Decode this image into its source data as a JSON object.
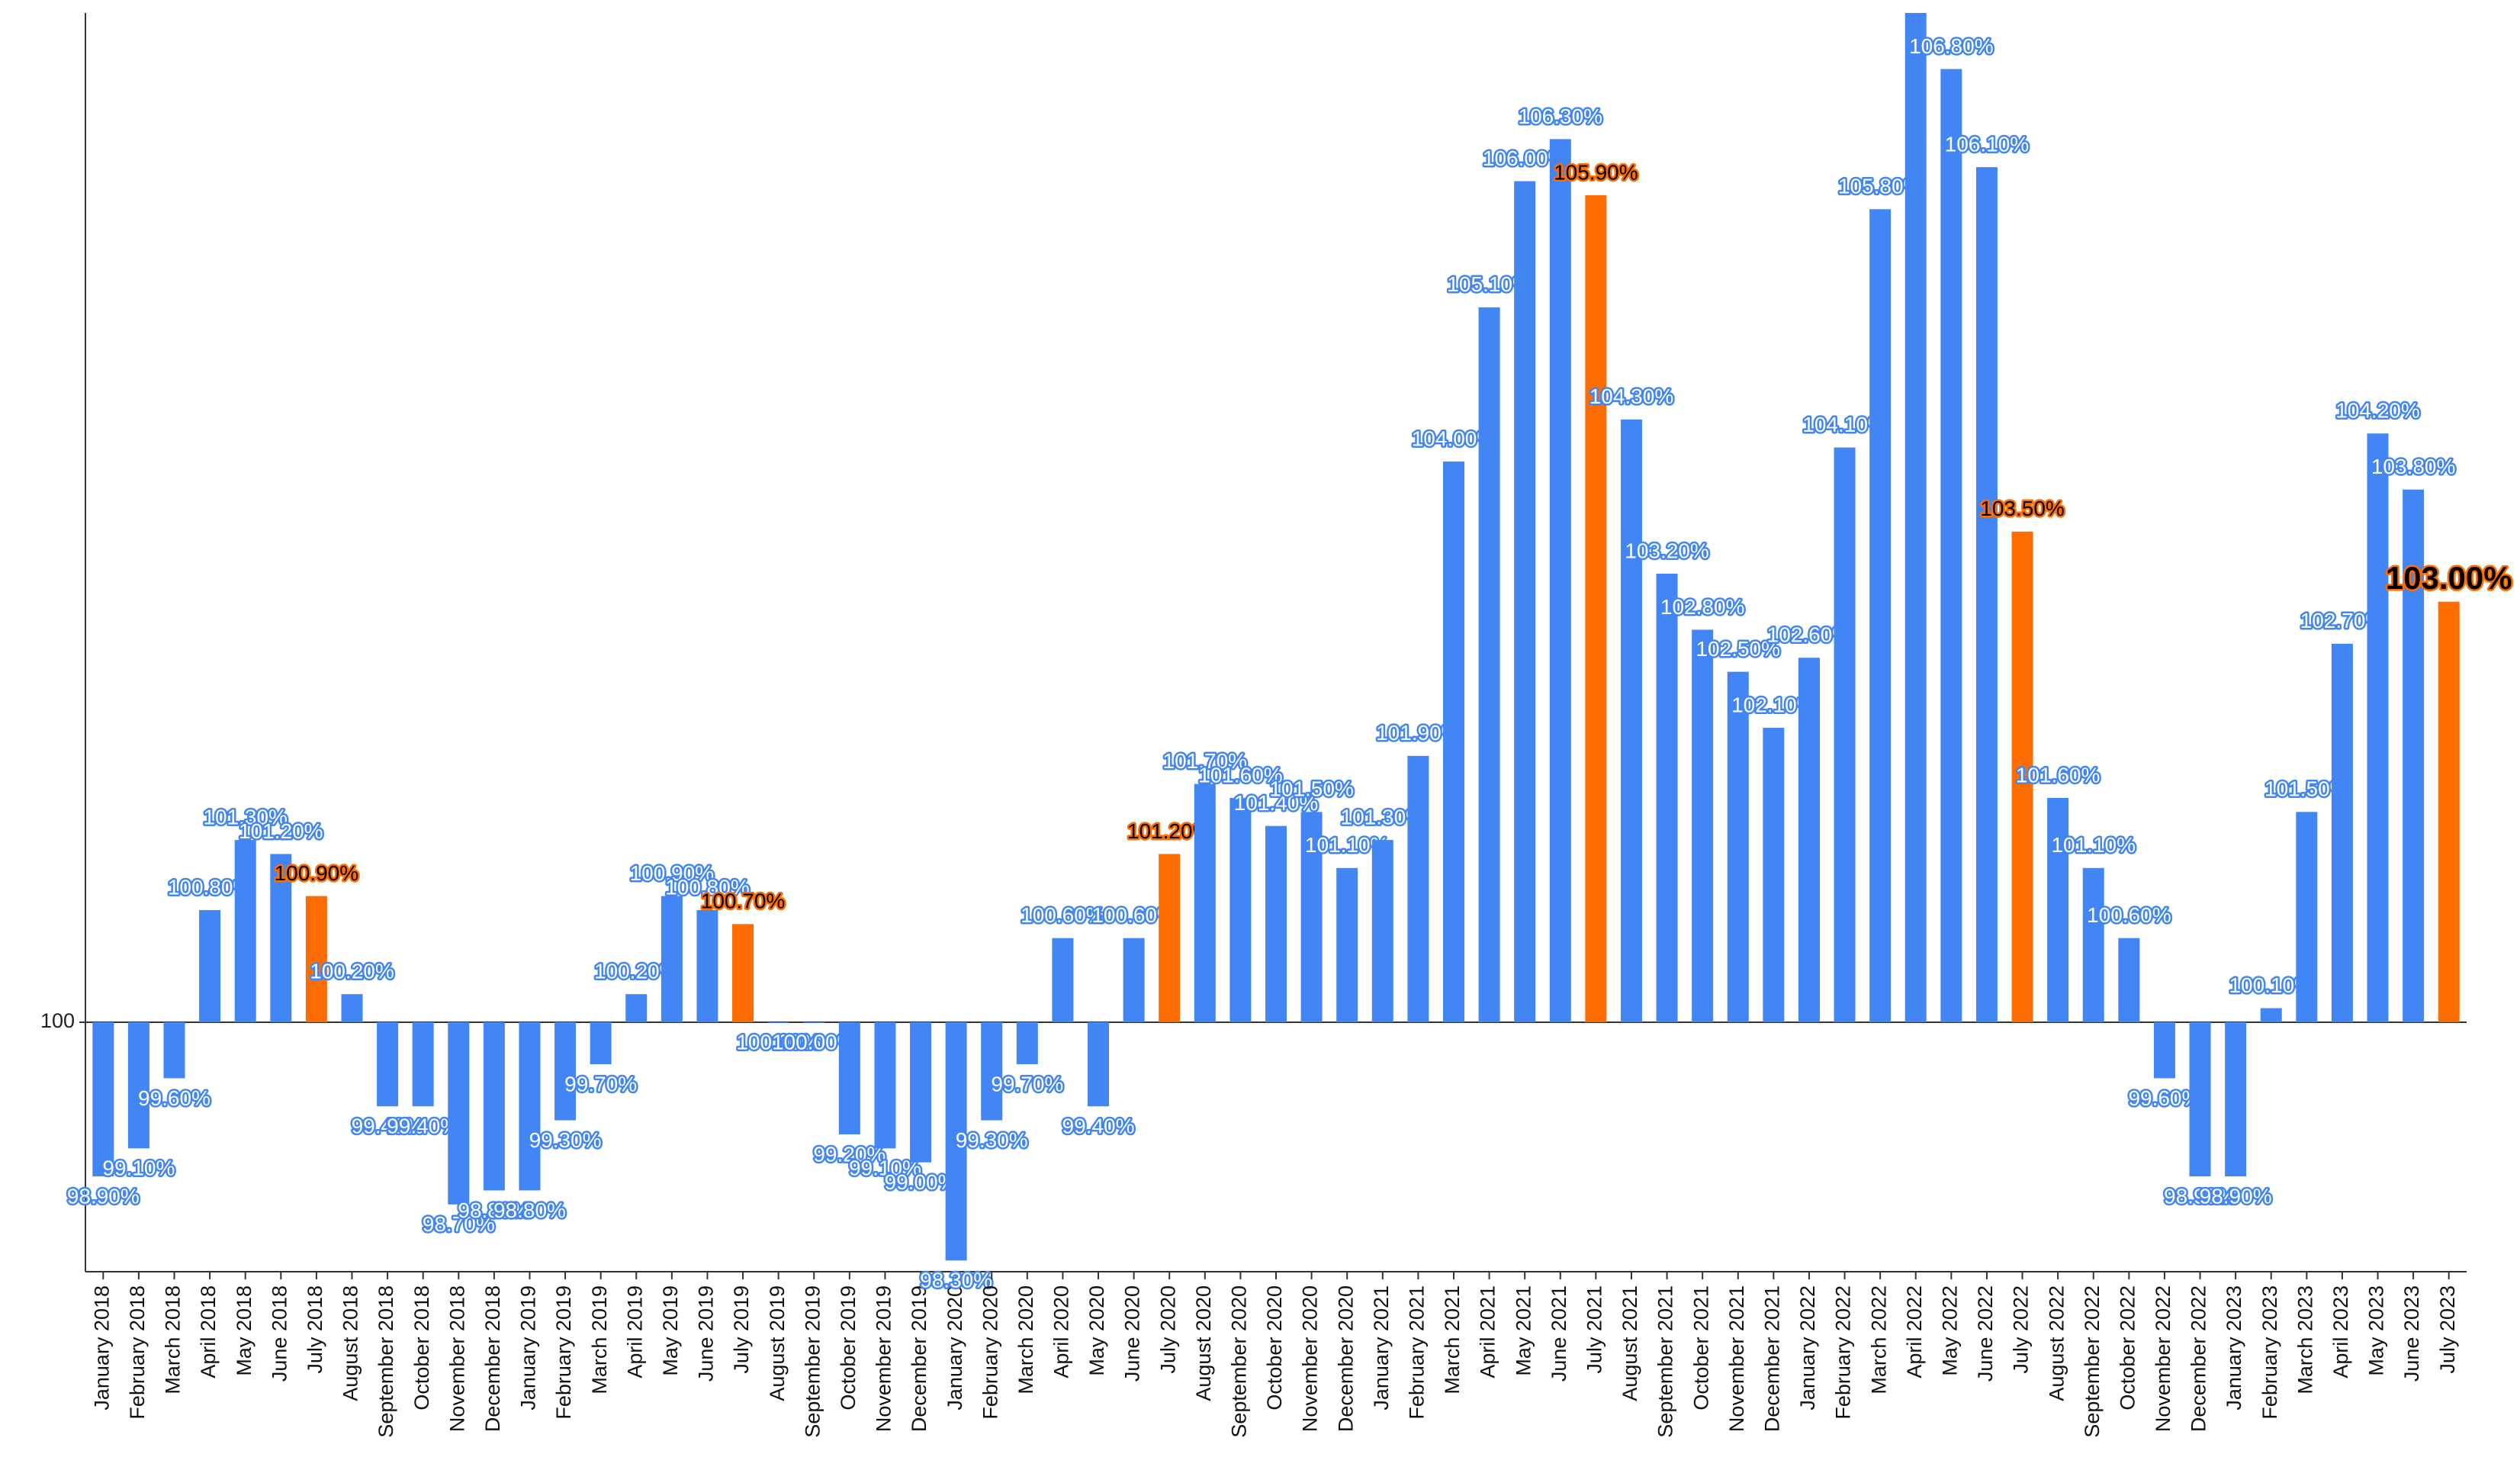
{
  "chart_data": {
    "type": "bar",
    "categories": [
      "January 2018",
      "February 2018",
      "March 2018",
      "April 2018",
      "May 2018",
      "June 2018",
      "July 2018",
      "August 2018",
      "September 2018",
      "October 2018",
      "November 2018",
      "December 2018",
      "January 2019",
      "February 2019",
      "March 2019",
      "April 2019",
      "May 2019",
      "June 2019",
      "July 2019",
      "August 2019",
      "September 2019",
      "October 2019",
      "November 2019",
      "December 2019",
      "January 2020",
      "February 2020",
      "March 2020",
      "April 2020",
      "May 2020",
      "June 2020",
      "July 2020",
      "August 2020",
      "September 2020",
      "October 2020",
      "November 2020",
      "December 2020",
      "January 2021",
      "February 2021",
      "March 2021",
      "April 2021",
      "May 2021",
      "June 2021",
      "July 2021",
      "August 2021",
      "September 2021",
      "October 2021",
      "November 2021",
      "December 2021",
      "January 2022",
      "February 2022",
      "March 2022",
      "April 2022",
      "May 2022",
      "June 2022",
      "July 2022",
      "August 2022",
      "September 2022",
      "October 2022",
      "November 2022",
      "December 2022",
      "January 2023",
      "February 2023",
      "March 2023",
      "April 2023",
      "May 2023",
      "June 2023",
      "July 2023"
    ],
    "values": [
      98.9,
      99.1,
      99.6,
      100.8,
      101.3,
      101.2,
      100.9,
      100.2,
      99.4,
      99.4,
      98.7,
      98.8,
      98.8,
      99.3,
      99.7,
      100.2,
      100.9,
      100.8,
      100.7,
      100.0,
      100.0,
      99.2,
      99.1,
      99.0,
      98.3,
      99.3,
      99.7,
      100.6,
      99.4,
      100.6,
      101.2,
      101.7,
      101.6,
      101.4,
      101.5,
      101.1,
      101.3,
      101.9,
      104.0,
      105.1,
      106.0,
      106.3,
      105.9,
      104.3,
      103.2,
      102.8,
      102.5,
      102.1,
      102.6,
      104.1,
      105.8,
      107.2,
      106.8,
      106.1,
      103.5,
      101.6,
      101.1,
      100.6,
      99.6,
      98.9,
      98.9,
      100.1,
      101.5,
      102.7,
      104.2,
      103.8,
      103.0
    ],
    "value_labels": [
      "98.90%",
      "99.10%",
      "99.60%",
      "100.80%",
      "101.30%",
      "101.20%",
      "100.90%",
      "100.20%",
      "99.40%",
      "99.40%",
      "98.70%",
      "98.80%",
      "98.80%",
      "99.30%",
      "99.70%",
      "100.20%",
      "100.90%",
      "100.80%",
      "100.70%",
      "100.00%",
      "100.00%",
      "99.20%",
      "99.10%",
      "99.00%",
      "98.30%",
      "99.30%",
      "99.70%",
      "100.60%",
      "99.40%",
      "100.60%",
      "101.20%",
      "101.70%",
      "101.60%",
      "101.40%",
      "101.50%",
      "101.10%",
      "101.30%",
      "101.90%",
      "104.00%",
      "105.10%",
      "106.00%",
      "106.30%",
      "105.90%",
      "104.30%",
      "103.20%",
      "102.80%",
      "102.50%",
      "102.10%",
      "102.60%",
      "104.10%",
      "105.80%",
      "107.20%",
      "106.80%",
      "106.10%",
      "103.50%",
      "101.60%",
      "101.10%",
      "100.60%",
      "99.60%",
      "98.90%",
      "98.90%",
      "100.10%",
      "101.50%",
      "102.70%",
      "104.20%",
      "103.80%",
      "103.00%"
    ],
    "colors": [
      "#4285f4",
      "#4285f4",
      "#4285f4",
      "#4285f4",
      "#4285f4",
      "#4285f4",
      "#ff6d01",
      "#4285f4",
      "#4285f4",
      "#4285f4",
      "#4285f4",
      "#4285f4",
      "#4285f4",
      "#4285f4",
      "#4285f4",
      "#4285f4",
      "#4285f4",
      "#4285f4",
      "#ff6d01",
      "#4285f4",
      "#4285f4",
      "#4285f4",
      "#4285f4",
      "#4285f4",
      "#4285f4",
      "#4285f4",
      "#4285f4",
      "#4285f4",
      "#4285f4",
      "#4285f4",
      "#ff6d01",
      "#4285f4",
      "#4285f4",
      "#4285f4",
      "#4285f4",
      "#4285f4",
      "#4285f4",
      "#4285f4",
      "#4285f4",
      "#4285f4",
      "#4285f4",
      "#4285f4",
      "#ff6d01",
      "#4285f4",
      "#4285f4",
      "#4285f4",
      "#4285f4",
      "#4285f4",
      "#4285f4",
      "#4285f4",
      "#4285f4",
      "#4285f4",
      "#4285f4",
      "#4285f4",
      "#ff6d01",
      "#4285f4",
      "#4285f4",
      "#4285f4",
      "#4285f4",
      "#4285f4",
      "#4285f4",
      "#4285f4",
      "#4285f4",
      "#4285f4",
      "#4285f4",
      "#4285f4",
      "#ff6d01"
    ],
    "ylim": [
      98.22,
      107.2
    ],
    "yticks": [
      100
    ]
  }
}
